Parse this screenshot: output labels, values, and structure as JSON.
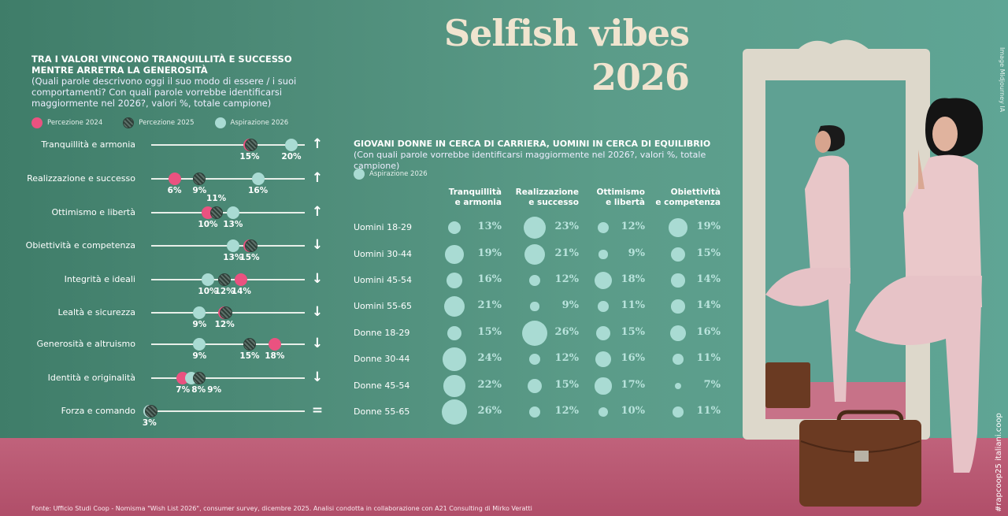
{
  "title": {
    "line1": "Selfish vibes",
    "line2": "2026"
  },
  "credit": "Image Midjourney IA",
  "hashtag": "#rapcoop25 italiani.coop",
  "source": "Fonte: Ufficio Studi Coop - Nomisma \"Wish List 2026\", consumer survey, dicembre 2025. Analisi condotta in collaborazione con A21 Consulting di Mirko Veratti",
  "colors": {
    "pink": "#ea5280",
    "hatched": "#2f3f39",
    "teal": "#a9dbd3",
    "background": "#5b9c89",
    "floor": "#b8566f",
    "title": "#f0e4cf"
  },
  "chart_data": [
    {
      "type": "dot-plot",
      "title": "TRA I VALORI VINCONO TRANQUILLITÀ E SUCCESSO MENTRE ARRETRA LA GENEROSITÀ",
      "title_line1": "TRA I VALORI VINCONO TRANQUILLITÀ E SUCCESSO",
      "title_line2": "MENTRE ARRETRA LA GENEROSITÀ",
      "subtitle": "(Quali parole descrivono oggi il suo modo di essere / i suoi comportamenti? Con quali parole vorrebbe identificarsi maggiormente nel 2026?, valori %, totale campione)",
      "legend": [
        "Percezione 2024",
        "Percezione 2025",
        "Aspirazione 2026"
      ],
      "unit": "%",
      "rows": [
        {
          "label": "Tranquillità e armonia",
          "p2024": 15,
          "p2025": 15,
          "a2026": 20,
          "trend": "up",
          "trend_icon": "↑"
        },
        {
          "label": "Realizzazione e successo",
          "p2024": 6,
          "p2025": 9,
          "a2026": 16,
          "trend": "up",
          "trend_icon": "↑"
        },
        {
          "label": "Ottimismo e libertà",
          "p2024": 10,
          "p2025": 11,
          "a2026": 13,
          "trend": "up",
          "trend_icon": "↑"
        },
        {
          "label": "Obiettività e competenza",
          "p2024": 15,
          "p2025": 15,
          "a2026": 13,
          "trend": "down",
          "trend_icon": "↓"
        },
        {
          "label": "Integrità e ideali",
          "p2024": 14,
          "p2025": 12,
          "a2026": 10,
          "trend": "down",
          "trend_icon": "↓"
        },
        {
          "label": "Lealtà e sicurezza",
          "p2024": 12,
          "p2025": 12,
          "a2026": 9,
          "trend": "down",
          "trend_icon": "↓"
        },
        {
          "label": "Generosità e altruismo",
          "p2024": 18,
          "p2025": 15,
          "a2026": 9,
          "trend": "down",
          "trend_icon": "↓"
        },
        {
          "label": "Identità e originalità",
          "p2024": 7,
          "p2025": 9,
          "a2026": 8,
          "trend": "down",
          "trend_icon": "↓"
        },
        {
          "label": "Forza e comando",
          "p2024": 3,
          "p2025": 3,
          "a2026": 3,
          "trend": "equal",
          "trend_icon": "="
        }
      ]
    },
    {
      "type": "bubble-table",
      "title": "GIOVANI DONNE IN CERCA DI CARRIERA, UOMINI IN CERCA DI EQUILIBRIO",
      "subtitle": "(Con quali parole vorrebbe identificarsi maggiormente nel 2026?, valori %, totale campione)",
      "legend": [
        "Aspirazione 2026"
      ],
      "unit": "%",
      "columns": [
        [
          "Tranquillità",
          "e armonia"
        ],
        [
          "Realizzazione",
          "e successo"
        ],
        [
          "Ottimismo",
          "e libertà"
        ],
        [
          "Obiettività",
          "e competenza"
        ]
      ],
      "rows": [
        {
          "label": "Uomini 18-29",
          "values": [
            13,
            23,
            12,
            19
          ]
        },
        {
          "label": "Uomini 30-44",
          "values": [
            19,
            21,
            9,
            15
          ]
        },
        {
          "label": "Uomini 45-54",
          "values": [
            16,
            12,
            18,
            14
          ]
        },
        {
          "label": "Uomini 55-65",
          "values": [
            21,
            9,
            11,
            14
          ]
        },
        {
          "label": "Donne 18-29",
          "values": [
            15,
            26,
            15,
            16
          ]
        },
        {
          "label": "Donne 30-44",
          "values": [
            24,
            12,
            16,
            11
          ]
        },
        {
          "label": "Donne 45-54",
          "values": [
            22,
            15,
            17,
            7
          ]
        },
        {
          "label": "Donne 55-65",
          "values": [
            26,
            12,
            10,
            11
          ]
        }
      ]
    }
  ]
}
